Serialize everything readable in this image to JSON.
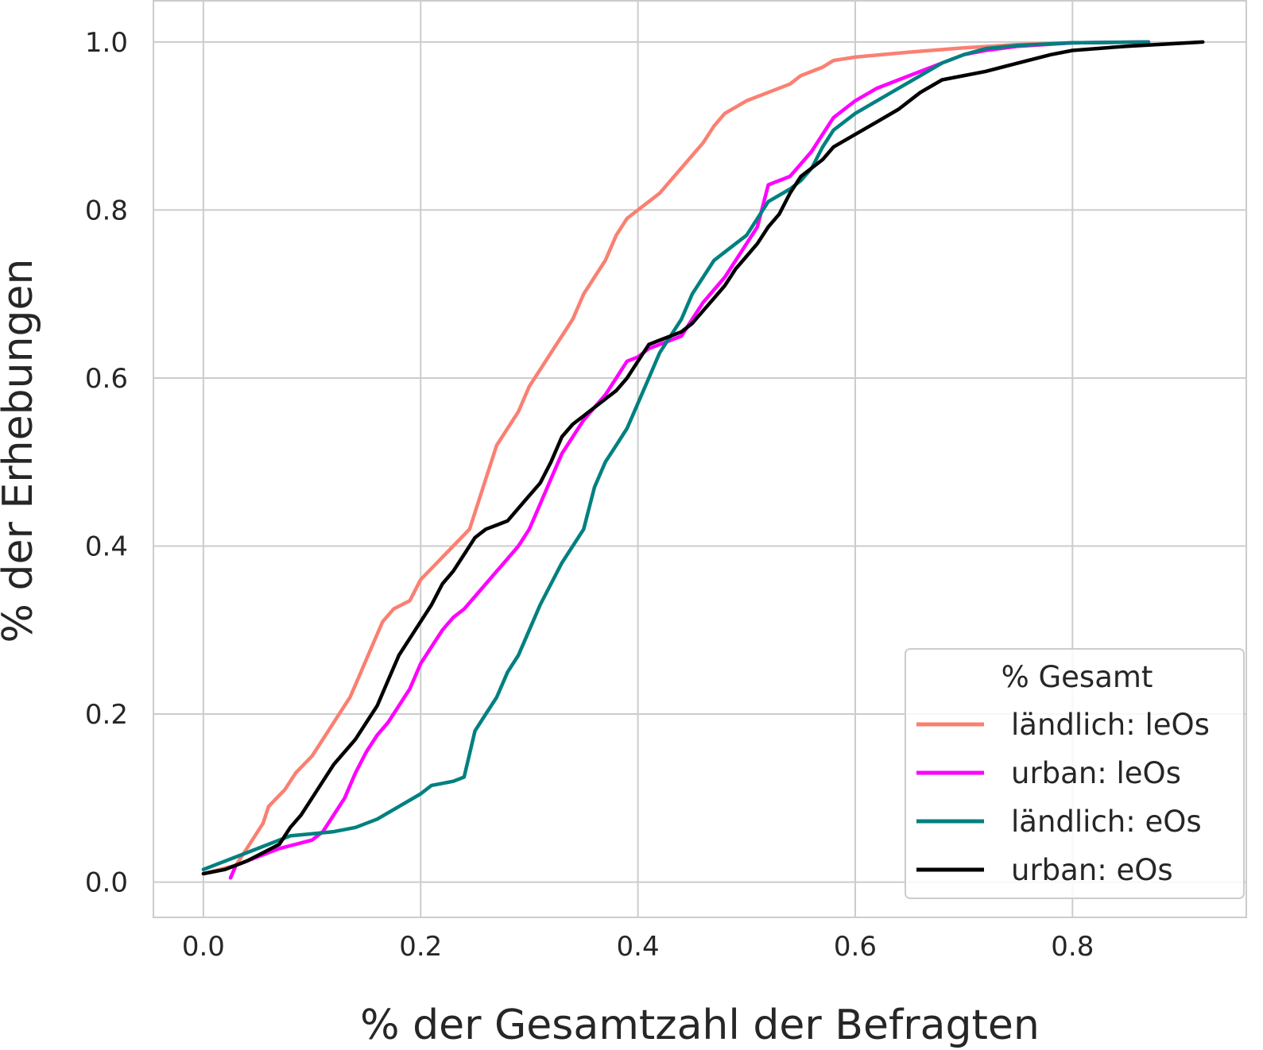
{
  "chart_data": {
    "type": "line",
    "xlabel": "% der Gesamtzahl der Befragten",
    "ylabel": "% der Erhebungen",
    "xlim": [
      -0.046,
      0.96
    ],
    "ylim": [
      -0.042,
      1.05
    ],
    "xticks": [
      0.0,
      0.2,
      0.4,
      0.6,
      0.8
    ],
    "yticks": [
      0.0,
      0.2,
      0.4,
      0.6,
      0.8,
      1.0
    ],
    "xtick_labels": [
      "0.0",
      "0.2",
      "0.4",
      "0.6",
      "0.8"
    ],
    "ytick_labels": [
      "0.0",
      "0.2",
      "0.4",
      "0.6",
      "0.8",
      "1.0"
    ],
    "grid": true,
    "legend": {
      "title": "% Gesamt",
      "position": "lower-right"
    },
    "series": [
      {
        "name": "ländlich: leOs",
        "color": "#fa8072",
        "x": [
          0.0,
          0.03,
          0.035,
          0.045,
          0.055,
          0.06,
          0.075,
          0.085,
          0.1,
          0.115,
          0.125,
          0.135,
          0.145,
          0.155,
          0.165,
          0.175,
          0.19,
          0.2,
          0.215,
          0.23,
          0.245,
          0.25,
          0.26,
          0.27,
          0.28,
          0.29,
          0.3,
          0.31,
          0.32,
          0.33,
          0.34,
          0.35,
          0.36,
          0.37,
          0.38,
          0.39,
          0.4,
          0.42,
          0.44,
          0.46,
          0.47,
          0.48,
          0.5,
          0.52,
          0.54,
          0.55,
          0.57,
          0.58,
          0.6,
          0.65,
          0.7,
          0.75,
          0.8,
          0.87
        ],
        "y": [
          0.01,
          0.02,
          0.03,
          0.05,
          0.07,
          0.09,
          0.11,
          0.13,
          0.15,
          0.18,
          0.2,
          0.22,
          0.25,
          0.28,
          0.31,
          0.325,
          0.335,
          0.36,
          0.38,
          0.4,
          0.42,
          0.44,
          0.48,
          0.52,
          0.54,
          0.56,
          0.59,
          0.61,
          0.63,
          0.65,
          0.67,
          0.7,
          0.72,
          0.74,
          0.77,
          0.79,
          0.8,
          0.82,
          0.85,
          0.88,
          0.9,
          0.915,
          0.93,
          0.94,
          0.95,
          0.96,
          0.97,
          0.978,
          0.982,
          0.988,
          0.993,
          0.997,
          0.999,
          1.0
        ]
      },
      {
        "name": "urban: leOs",
        "color": "#ff00ff",
        "x": [
          0.025,
          0.03,
          0.05,
          0.07,
          0.085,
          0.1,
          0.11,
          0.12,
          0.13,
          0.14,
          0.15,
          0.16,
          0.17,
          0.18,
          0.19,
          0.2,
          0.21,
          0.22,
          0.23,
          0.24,
          0.25,
          0.26,
          0.27,
          0.28,
          0.29,
          0.3,
          0.31,
          0.32,
          0.33,
          0.34,
          0.35,
          0.36,
          0.37,
          0.38,
          0.39,
          0.4,
          0.41,
          0.42,
          0.43,
          0.44,
          0.45,
          0.46,
          0.47,
          0.48,
          0.49,
          0.5,
          0.51,
          0.52,
          0.53,
          0.54,
          0.55,
          0.56,
          0.57,
          0.58,
          0.6,
          0.62,
          0.64,
          0.66,
          0.68,
          0.7,
          0.72,
          0.75,
          0.8,
          0.87
        ],
        "y": [
          0.005,
          0.02,
          0.03,
          0.04,
          0.045,
          0.05,
          0.06,
          0.08,
          0.1,
          0.13,
          0.155,
          0.175,
          0.19,
          0.21,
          0.23,
          0.26,
          0.28,
          0.3,
          0.315,
          0.325,
          0.34,
          0.355,
          0.37,
          0.385,
          0.4,
          0.42,
          0.45,
          0.48,
          0.51,
          0.53,
          0.55,
          0.565,
          0.58,
          0.6,
          0.62,
          0.625,
          0.635,
          0.64,
          0.645,
          0.65,
          0.67,
          0.69,
          0.705,
          0.72,
          0.74,
          0.76,
          0.78,
          0.83,
          0.835,
          0.84,
          0.855,
          0.87,
          0.89,
          0.91,
          0.93,
          0.945,
          0.955,
          0.965,
          0.975,
          0.985,
          0.99,
          0.995,
          0.999,
          1.0
        ]
      },
      {
        "name": "ländlich: eOs",
        "color": "#008080",
        "x": [
          0.0,
          0.04,
          0.08,
          0.12,
          0.14,
          0.16,
          0.18,
          0.2,
          0.21,
          0.23,
          0.24,
          0.25,
          0.26,
          0.27,
          0.28,
          0.29,
          0.3,
          0.31,
          0.32,
          0.33,
          0.34,
          0.35,
          0.36,
          0.37,
          0.38,
          0.39,
          0.4,
          0.41,
          0.42,
          0.43,
          0.44,
          0.45,
          0.46,
          0.47,
          0.48,
          0.5,
          0.52,
          0.54,
          0.55,
          0.56,
          0.57,
          0.58,
          0.6,
          0.62,
          0.64,
          0.66,
          0.68,
          0.7,
          0.72,
          0.75,
          0.8,
          0.87
        ],
        "y": [
          0.015,
          0.035,
          0.055,
          0.06,
          0.065,
          0.075,
          0.09,
          0.105,
          0.115,
          0.12,
          0.125,
          0.18,
          0.2,
          0.22,
          0.25,
          0.27,
          0.3,
          0.33,
          0.355,
          0.38,
          0.4,
          0.42,
          0.47,
          0.5,
          0.52,
          0.54,
          0.57,
          0.6,
          0.63,
          0.65,
          0.67,
          0.7,
          0.72,
          0.74,
          0.75,
          0.77,
          0.81,
          0.825,
          0.835,
          0.85,
          0.875,
          0.895,
          0.915,
          0.93,
          0.945,
          0.96,
          0.975,
          0.985,
          0.992,
          0.996,
          0.999,
          1.0
        ]
      },
      {
        "name": "urban: eOs",
        "color": "#000000",
        "x": [
          0.0,
          0.02,
          0.04,
          0.055,
          0.07,
          0.08,
          0.09,
          0.1,
          0.11,
          0.12,
          0.13,
          0.14,
          0.15,
          0.16,
          0.17,
          0.18,
          0.19,
          0.2,
          0.21,
          0.22,
          0.23,
          0.24,
          0.25,
          0.26,
          0.27,
          0.28,
          0.29,
          0.3,
          0.31,
          0.32,
          0.33,
          0.34,
          0.35,
          0.36,
          0.37,
          0.38,
          0.39,
          0.4,
          0.41,
          0.42,
          0.43,
          0.44,
          0.45,
          0.46,
          0.47,
          0.48,
          0.49,
          0.5,
          0.51,
          0.52,
          0.53,
          0.54,
          0.55,
          0.56,
          0.57,
          0.58,
          0.6,
          0.62,
          0.64,
          0.66,
          0.68,
          0.72,
          0.75,
          0.78,
          0.8,
          0.85,
          0.92
        ],
        "y": [
          0.01,
          0.015,
          0.025,
          0.035,
          0.045,
          0.065,
          0.08,
          0.1,
          0.12,
          0.14,
          0.155,
          0.17,
          0.19,
          0.21,
          0.24,
          0.27,
          0.29,
          0.31,
          0.33,
          0.355,
          0.37,
          0.39,
          0.41,
          0.42,
          0.425,
          0.43,
          0.445,
          0.46,
          0.475,
          0.5,
          0.53,
          0.545,
          0.555,
          0.565,
          0.575,
          0.585,
          0.6,
          0.62,
          0.64,
          0.645,
          0.65,
          0.655,
          0.665,
          0.68,
          0.695,
          0.71,
          0.73,
          0.745,
          0.76,
          0.78,
          0.795,
          0.82,
          0.84,
          0.85,
          0.86,
          0.875,
          0.89,
          0.905,
          0.92,
          0.94,
          0.955,
          0.965,
          0.975,
          0.985,
          0.99,
          0.995,
          1.0
        ]
      }
    ]
  }
}
